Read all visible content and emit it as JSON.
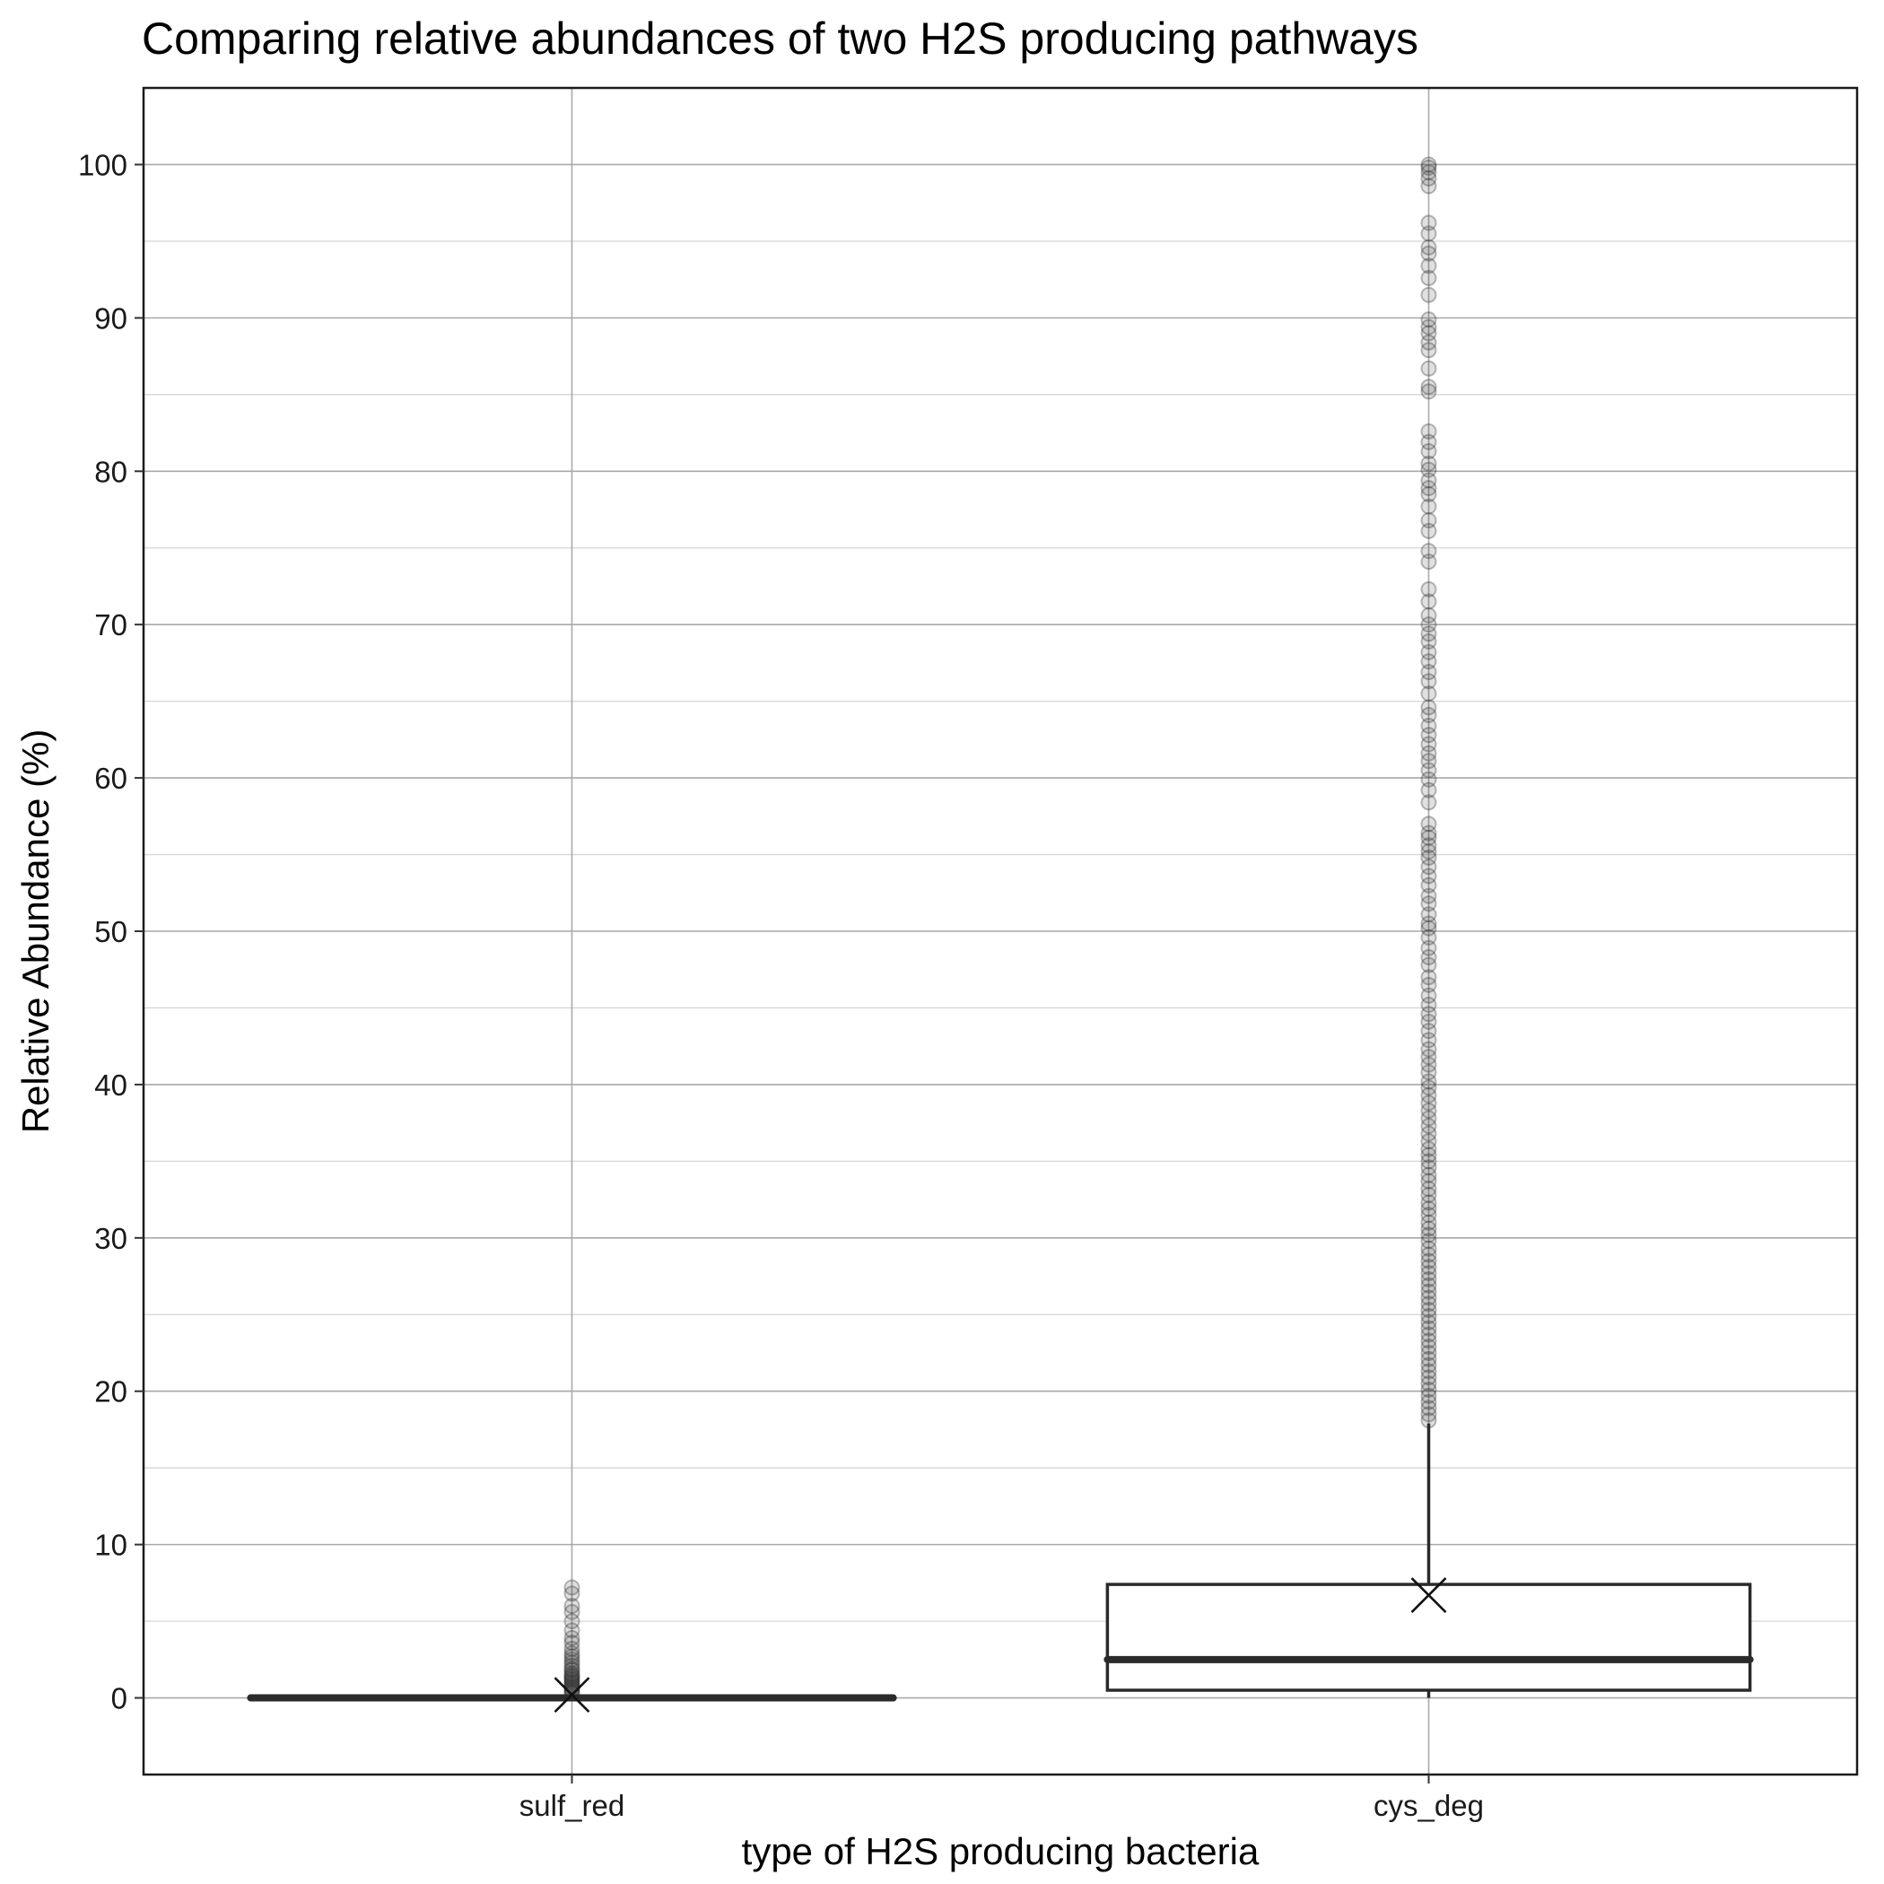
{
  "chart_data": {
    "type": "box",
    "title": "Comparing relative abundances of two H2S producing pathways",
    "xlabel": "type of H2S producing bacteria",
    "ylabel": "Relative Abundance (%)",
    "ylim": [
      -5,
      105
    ],
    "yticks": [
      0,
      10,
      20,
      30,
      40,
      50,
      60,
      70,
      80,
      90,
      100
    ],
    "grid": true,
    "categories": [
      "sulf_red",
      "cys_deg"
    ],
    "boxes": [
      {
        "category": "sulf_red",
        "q1": 0,
        "median": 0,
        "q3": 0,
        "whisker_low": 0,
        "whisker_high": 0,
        "mean": 0.2,
        "outliers": [
          7.2,
          6.8,
          6.0,
          5.6,
          5.0,
          4.4,
          3.9,
          3.6,
          3.2,
          2.9,
          2.7,
          2.5,
          2.3,
          2.1,
          1.9,
          1.8,
          1.6,
          1.5,
          1.4,
          1.3,
          1.2,
          1.1,
          1.0,
          0.9,
          0.8,
          0.7,
          0.6,
          0.5,
          0.4,
          0.3
        ]
      },
      {
        "category": "cys_deg",
        "q1": 0.5,
        "median": 2.5,
        "q3": 7.4,
        "whisker_low": 0,
        "whisker_high": 17.9,
        "mean": 6.7,
        "outliers": [
          100,
          99.8,
          99.5,
          99.1,
          98.6,
          96.2,
          95.5,
          94.6,
          94.2,
          93.4,
          92.6,
          91.5,
          89.9,
          89.4,
          89.0,
          88.4,
          87.9,
          86.7,
          85.5,
          85.2,
          82.6,
          81.9,
          81.3,
          80.5,
          80.1,
          79.4,
          78.9,
          78.5,
          77.7,
          76.8,
          76.1,
          74.8,
          74.1,
          72.3,
          71.5,
          70.6,
          70.0,
          69.4,
          68.9,
          68.2,
          67.6,
          66.9,
          66.3,
          65.5,
          64.6,
          64.1,
          63.4,
          62.8,
          62.2,
          61.6,
          61.1,
          60.5,
          59.9,
          59.2,
          58.4,
          57.0,
          56.4,
          56.1,
          55.6,
          55.2,
          54.8,
          54.2,
          53.6,
          53.0,
          52.3,
          51.8,
          51.1,
          50.5,
          50.2,
          49.6,
          48.9,
          48.3,
          47.8,
          47.0,
          46.5,
          45.8,
          45.2,
          44.6,
          44.1,
          43.5,
          42.9,
          42.3,
          41.8,
          41.3,
          40.8,
          40.2,
          39.8,
          39.3,
          38.8,
          38.3,
          37.8,
          37.3,
          36.8,
          36.3,
          35.8,
          35.4,
          35.0,
          34.6,
          34.1,
          33.7,
          33.2,
          32.8,
          32.3,
          31.9,
          31.5,
          31.0,
          30.6,
          30.2,
          29.8,
          29.3,
          28.9,
          28.5,
          28.1,
          27.7,
          27.3,
          26.9,
          26.5,
          26.1,
          25.7,
          25.3,
          24.9,
          24.5,
          24.1,
          23.7,
          23.3,
          22.9,
          22.5,
          22.1,
          21.7,
          21.3,
          20.9,
          20.5,
          20.1,
          19.7,
          19.3,
          18.9,
          18.5,
          18.1
        ]
      }
    ]
  }
}
